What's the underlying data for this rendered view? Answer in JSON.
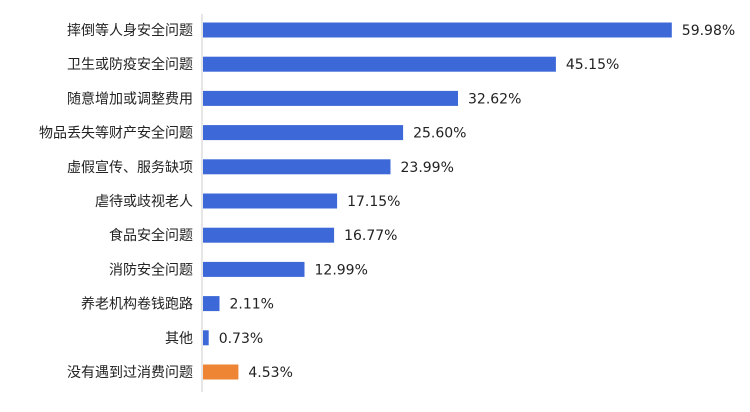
{
  "chart_data": {
    "type": "bar",
    "orientation": "horizontal",
    "categories": [
      "摔倒等人身安全问题",
      "卫生或防疫安全问题",
      "随意增加或调整费用",
      "物品丢失等财产安全问题",
      "虚假宣传、服务缺项",
      "虐待或歧视老人",
      "食品安全问题",
      "消防安全问题",
      "养老机构卷钱跑路",
      "其他",
      "没有遇到过消费问题"
    ],
    "values": [
      59.98,
      45.15,
      32.62,
      25.6,
      23.99,
      17.15,
      16.77,
      12.99,
      2.11,
      0.73,
      4.53
    ],
    "value_labels": [
      "59.98%",
      "45.15%",
      "32.62%",
      "25.60%",
      "23.99%",
      "17.15%",
      "16.77%",
      "12.99%",
      "2.11%",
      "0.73%",
      "4.53%"
    ],
    "bar_colors": [
      "#3d68d8",
      "#3d68d8",
      "#3d68d8",
      "#3d68d8",
      "#3d68d8",
      "#3d68d8",
      "#3d68d8",
      "#3d68d8",
      "#3d68d8",
      "#3d68d8",
      "#ee8535"
    ],
    "xlim": [
      0,
      60
    ],
    "grid": false,
    "legend": "none",
    "title": "",
    "xlabel": "",
    "ylabel": ""
  },
  "colors": {
    "bar_primary": "#3d68d8",
    "bar_highlight": "#ee8535",
    "axis": "#cccccc",
    "text": "#222222"
  }
}
